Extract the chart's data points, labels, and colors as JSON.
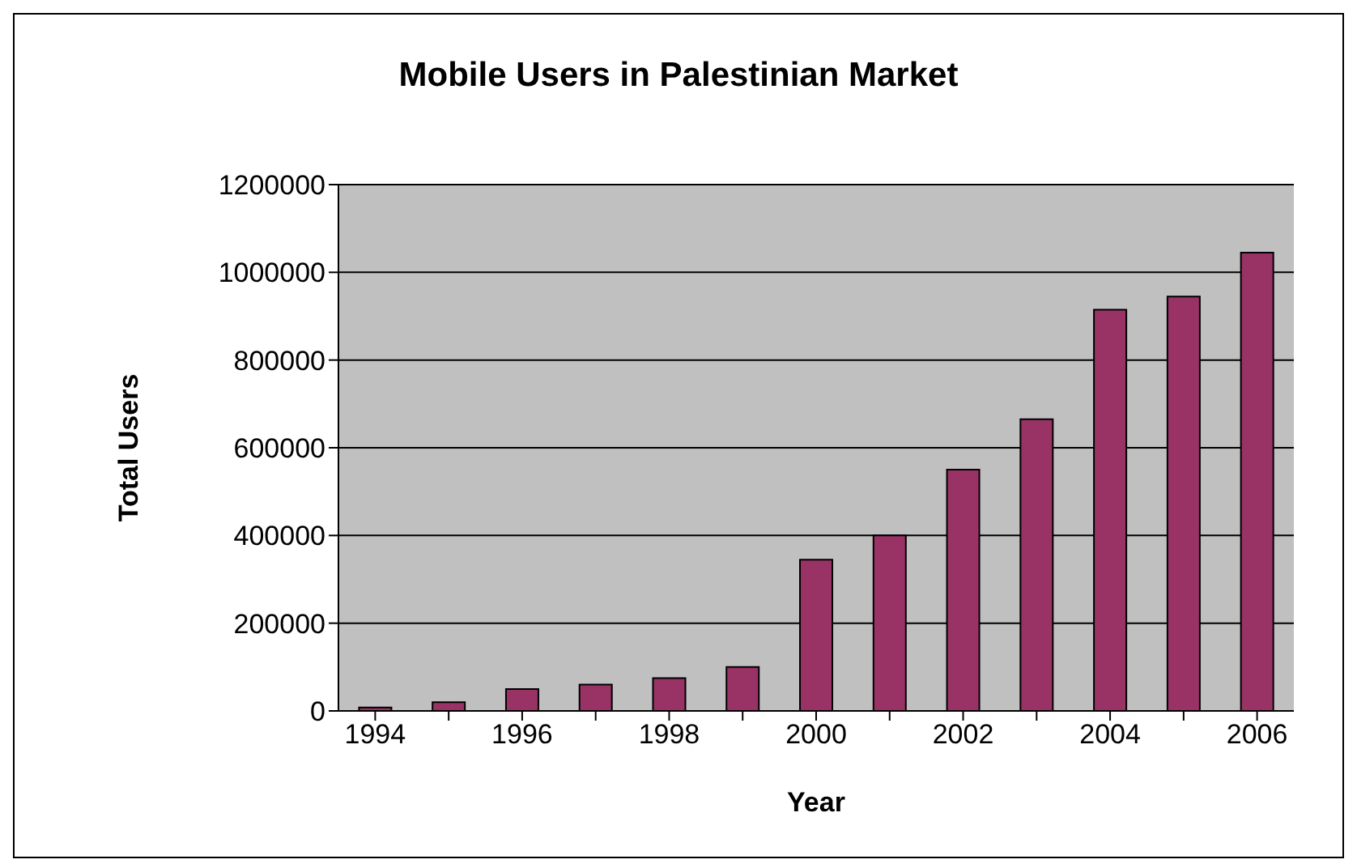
{
  "chart_data": {
    "type": "bar",
    "title": "Mobile Users in Palestinian Market",
    "xlabel": "Year",
    "ylabel": "Total Users",
    "categories": [
      "1994",
      null,
      "1996",
      null,
      "1998",
      null,
      "2000",
      null,
      "2002",
      null,
      "2004",
      null,
      "2006"
    ],
    "values": [
      8000,
      20000,
      50000,
      60000,
      75000,
      100000,
      345000,
      400000,
      550000,
      665000,
      915000,
      945000,
      1045000
    ],
    "color": "#993366",
    "ylim": [
      0,
      1200000
    ],
    "yticks": [
      0,
      200000,
      400000,
      600000,
      800000,
      1000000,
      1200000
    ],
    "grid": "y"
  }
}
